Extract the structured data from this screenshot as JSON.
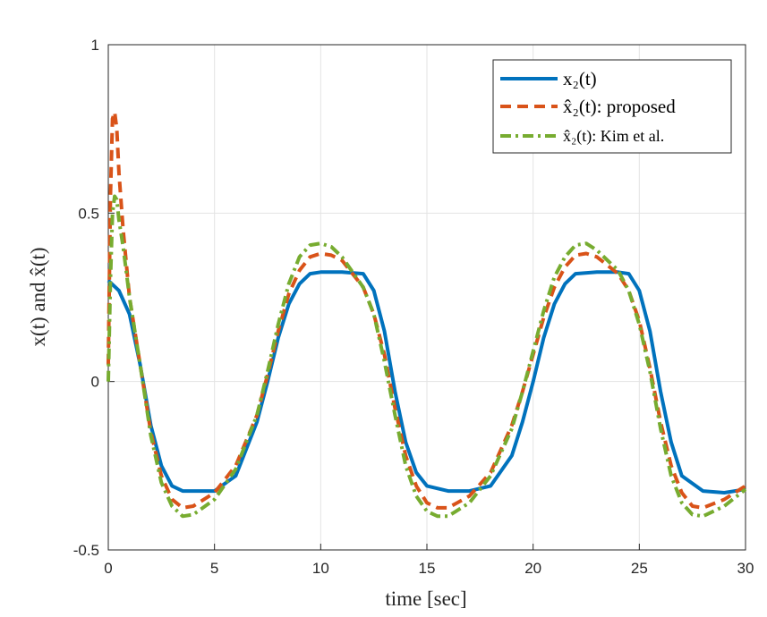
{
  "chart_data": {
    "type": "line",
    "xlabel": "time [sec]",
    "ylabel": "x(t) and x̂(t)",
    "xlim": [
      0,
      30
    ],
    "ylim": [
      -0.5,
      1
    ],
    "xticks": [
      0,
      5,
      10,
      15,
      20,
      25,
      30
    ],
    "yticks": [
      -0.5,
      0,
      0.5,
      1
    ],
    "xtick_labels": [
      "0",
      "5",
      "10",
      "15",
      "20",
      "25",
      "30"
    ],
    "ytick_labels": [
      "-0.5",
      "0",
      "0.5",
      "1"
    ],
    "grid": true,
    "legend_position": "top-right",
    "series": [
      {
        "name": "x₂(t)",
        "color": "#0072BD",
        "style": "solid",
        "x": [
          0,
          0.5,
          1,
          1.5,
          2,
          2.5,
          3,
          3.5,
          4,
          5,
          6,
          7,
          7.5,
          8,
          8.5,
          9,
          9.5,
          10,
          11,
          12,
          12.5,
          13,
          13.5,
          14,
          14.5,
          15,
          16,
          17,
          18,
          19,
          19.5,
          20,
          20.5,
          21,
          21.5,
          22,
          23,
          24,
          24.5,
          25,
          25.5,
          26,
          26.5,
          27,
          28,
          29,
          30
        ],
        "y": [
          0.3,
          0.27,
          0.2,
          0.05,
          -0.13,
          -0.25,
          -0.31,
          -0.325,
          -0.325,
          -0.325,
          -0.28,
          -0.12,
          0.0,
          0.13,
          0.23,
          0.29,
          0.32,
          0.325,
          0.325,
          0.32,
          0.27,
          0.15,
          -0.03,
          -0.18,
          -0.27,
          -0.31,
          -0.325,
          -0.325,
          -0.31,
          -0.22,
          -0.12,
          0.0,
          0.13,
          0.23,
          0.29,
          0.32,
          0.325,
          0.325,
          0.32,
          0.27,
          0.15,
          -0.03,
          -0.18,
          -0.28,
          -0.325,
          -0.33,
          -0.32
        ]
      },
      {
        "name": "x̂₂(t): proposed",
        "color": "#D95319",
        "style": "dashed",
        "x": [
          0,
          0.1,
          0.2,
          0.3,
          0.4,
          0.5,
          0.7,
          1,
          1.5,
          2,
          2.5,
          3,
          3.5,
          4,
          5,
          6,
          7,
          7.5,
          8,
          8.5,
          9,
          9.5,
          10,
          10.5,
          11,
          12,
          12.5,
          13,
          13.5,
          14,
          14.5,
          15,
          15.5,
          16,
          17,
          18,
          19,
          19.5,
          20,
          20.5,
          21,
          21.5,
          22,
          22.5,
          23,
          24,
          24.5,
          25,
          25.5,
          26,
          26.5,
          27,
          27.5,
          28,
          29,
          30
        ],
        "y": [
          0.05,
          0.55,
          0.78,
          0.8,
          0.75,
          0.62,
          0.45,
          0.25,
          0.05,
          -0.15,
          -0.28,
          -0.35,
          -0.375,
          -0.37,
          -0.33,
          -0.25,
          -0.1,
          0.02,
          0.15,
          0.26,
          0.33,
          0.37,
          0.38,
          0.375,
          0.36,
          0.28,
          0.2,
          0.08,
          -0.08,
          -0.22,
          -0.31,
          -0.36,
          -0.375,
          -0.375,
          -0.34,
          -0.27,
          -0.13,
          -0.03,
          0.08,
          0.19,
          0.28,
          0.34,
          0.375,
          0.38,
          0.37,
          0.32,
          0.27,
          0.18,
          0.04,
          -0.12,
          -0.25,
          -0.33,
          -0.37,
          -0.375,
          -0.35,
          -0.31
        ]
      },
      {
        "name": "x̂₂(t): Kim et al.",
        "color": "#77AC30",
        "style": "dashdot",
        "x": [
          0,
          0.1,
          0.2,
          0.3,
          0.4,
          0.5,
          0.7,
          1,
          1.5,
          2,
          2.5,
          3,
          3.5,
          4,
          5,
          6,
          7,
          7.5,
          8,
          8.5,
          9,
          9.5,
          10,
          10.5,
          11,
          12,
          12.5,
          13,
          13.5,
          14,
          14.5,
          15,
          15.5,
          16,
          17,
          18,
          19,
          19.5,
          20,
          20.5,
          21,
          21.5,
          22,
          22.5,
          23,
          24,
          24.5,
          25,
          25.5,
          26,
          26.5,
          27,
          27.5,
          28,
          29,
          30
        ],
        "y": [
          0.0,
          0.3,
          0.5,
          0.55,
          0.54,
          0.48,
          0.4,
          0.25,
          0.05,
          -0.16,
          -0.3,
          -0.37,
          -0.4,
          -0.395,
          -0.35,
          -0.26,
          -0.1,
          0.03,
          0.17,
          0.29,
          0.37,
          0.405,
          0.41,
          0.4,
          0.37,
          0.28,
          0.2,
          0.06,
          -0.1,
          -0.25,
          -0.34,
          -0.385,
          -0.4,
          -0.4,
          -0.36,
          -0.28,
          -0.14,
          -0.03,
          0.09,
          0.21,
          0.31,
          0.37,
          0.405,
          0.41,
          0.39,
          0.33,
          0.27,
          0.17,
          0.03,
          -0.14,
          -0.28,
          -0.36,
          -0.395,
          -0.4,
          -0.37,
          -0.32
        ]
      }
    ]
  }
}
